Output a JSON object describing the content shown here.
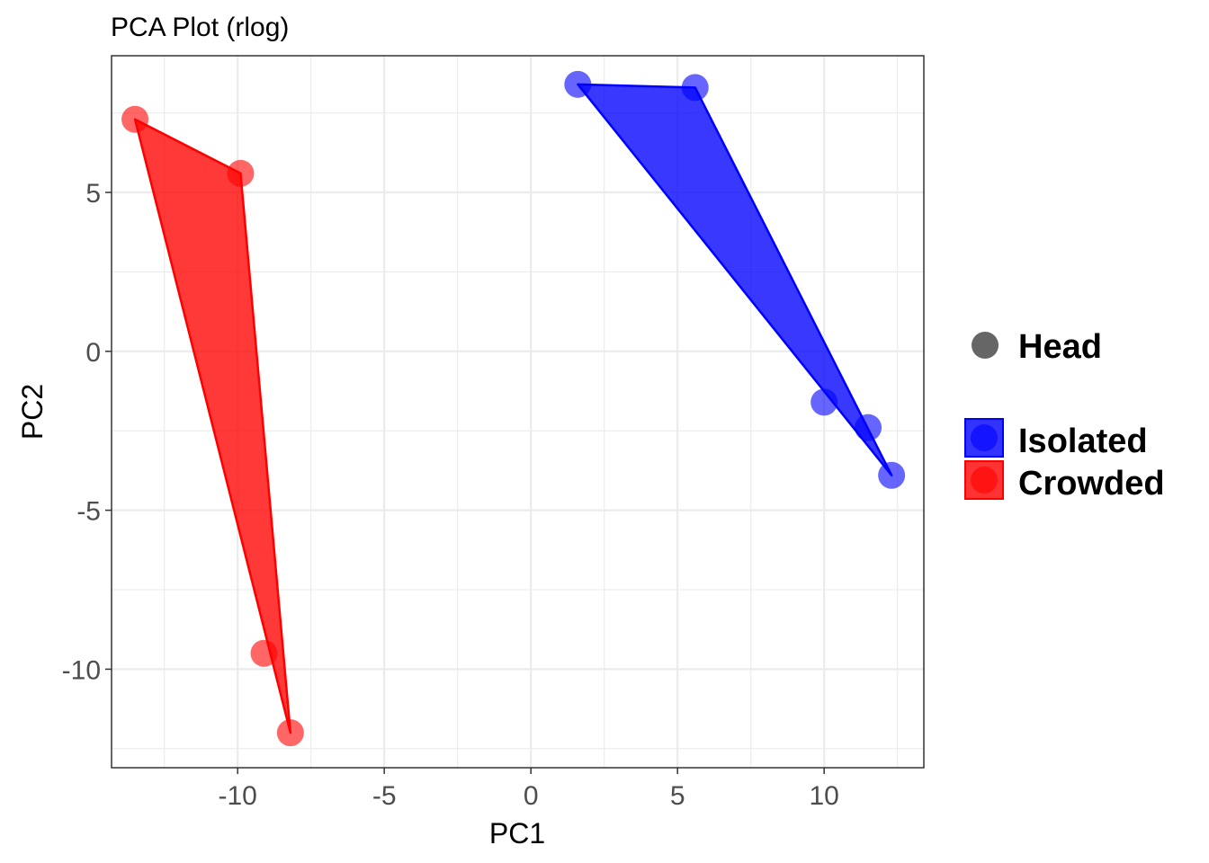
{
  "chart_data": {
    "type": "scatter",
    "title": "PCA Plot (rlog)",
    "xlabel": "PC1",
    "ylabel": "PC2",
    "xlim": [
      -14.3,
      13.4
    ],
    "ylim": [
      -13.1,
      9.3
    ],
    "xticks": [
      -10,
      -5,
      0,
      5,
      10
    ],
    "yticks": [
      -10,
      -5,
      0,
      5
    ],
    "grid": true,
    "legend_position": "right",
    "shape_legend": {
      "label": "Head",
      "color": "#666666"
    },
    "series": [
      {
        "name": "Isolated",
        "color": "#0000ff",
        "points": [
          {
            "x": 1.6,
            "y": 8.4
          },
          {
            "x": 5.6,
            "y": 8.3
          },
          {
            "x": 10.0,
            "y": -1.6
          },
          {
            "x": 11.5,
            "y": -2.4
          },
          {
            "x": 12.3,
            "y": -3.9
          }
        ],
        "hull": [
          [
            1.6,
            8.4
          ],
          [
            5.6,
            8.3
          ],
          [
            12.3,
            -3.9
          ]
        ]
      },
      {
        "name": "Crowded",
        "color": "#ff0000",
        "points": [
          {
            "x": -13.5,
            "y": 7.3
          },
          {
            "x": -9.9,
            "y": 5.6
          },
          {
            "x": -9.1,
            "y": -9.5
          },
          {
            "x": -8.2,
            "y": -12.0
          }
        ],
        "hull": [
          [
            -13.5,
            7.3
          ],
          [
            -9.9,
            5.6
          ],
          [
            -8.2,
            -12.0
          ]
        ]
      }
    ]
  }
}
